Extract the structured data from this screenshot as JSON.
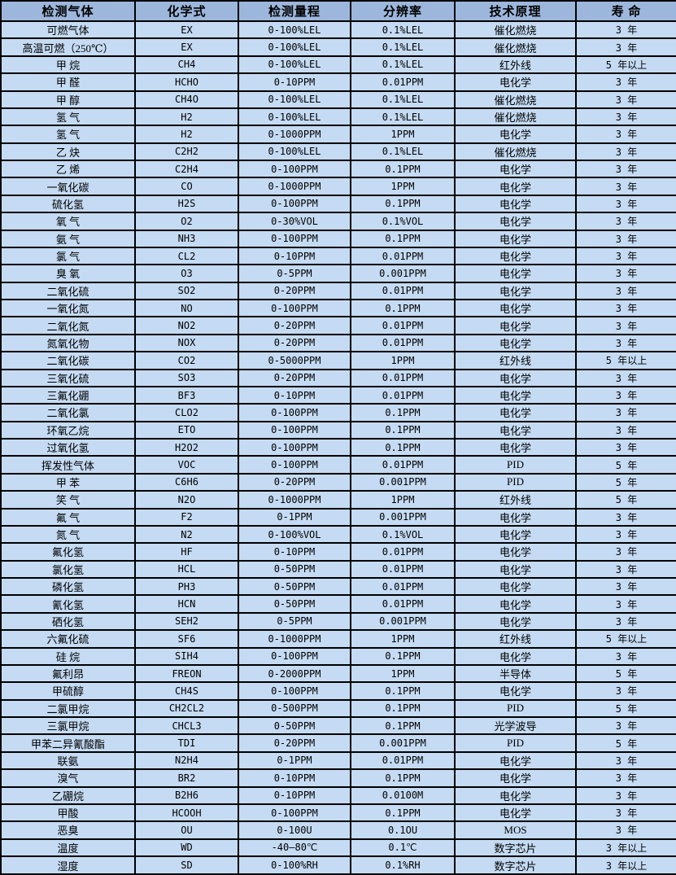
{
  "colors": {
    "header_bg": "#9DB7DC",
    "row_bg": "#C5DBF3",
    "border": "#000000"
  },
  "table": {
    "columns": [
      {
        "key": "gas",
        "label": "检测气体"
      },
      {
        "key": "formula",
        "label": "化学式"
      },
      {
        "key": "range",
        "label": "检测量程"
      },
      {
        "key": "resolution",
        "label": "分辨率"
      },
      {
        "key": "principle",
        "label": "技术原理"
      },
      {
        "key": "lifespan",
        "label": "寿 命"
      }
    ],
    "rows": [
      [
        "可燃气体",
        "EX",
        "0-100%LEL",
        "0.1%LEL",
        "催化燃烧",
        "3 年"
      ],
      [
        "高温可燃（250℃）",
        "EX",
        "0-100%LEL",
        "0.1%LEL",
        "催化燃烧",
        "3 年"
      ],
      [
        "甲 烷",
        "CH4",
        "0-100%LEL",
        "0.1%LEL",
        "红外线",
        "5 年以上"
      ],
      [
        "甲 醛",
        "HCHO",
        "0-10PPM",
        "0.01PPM",
        "电化学",
        "3 年"
      ],
      [
        "甲 醇",
        "CH4O",
        "0-100%LEL",
        "0.1%LEL",
        "催化燃烧",
        "3 年"
      ],
      [
        "氢 气",
        "H2",
        "0-100%LEL",
        "0.1%LEL",
        "催化燃烧",
        "3 年"
      ],
      [
        "氢 气",
        "H2",
        "0-1000PPM",
        "1PPM",
        "电化学",
        "3 年"
      ],
      [
        "乙 炔",
        "C2H2",
        "0-100%LEL",
        "0.1%LEL",
        "催化燃烧",
        "3 年"
      ],
      [
        "乙 烯",
        "C2H4",
        "0-100PPM",
        "0.1PPM",
        "电化学",
        "3 年"
      ],
      [
        "一氧化碳",
        "CO",
        "0-1000PPM",
        "1PPM",
        "电化学",
        "3 年"
      ],
      [
        "硫化氢",
        "H2S",
        "0-100PPM",
        "0.1PPM",
        "电化学",
        "3 年"
      ],
      [
        "氧 气",
        "O2",
        "0-30%VOL",
        "0.1%VOL",
        "电化学",
        "3 年"
      ],
      [
        "氨 气",
        "NH3",
        "0-100PPM",
        "0.1PPM",
        "电化学",
        "3 年"
      ],
      [
        "氯 气",
        "CL2",
        "0-10PPM",
        "0.01PPM",
        "电化学",
        "3 年"
      ],
      [
        "臭 氧",
        "O3",
        "0-5PPM",
        "0.001PPM",
        "电化学",
        "3 年"
      ],
      [
        "二氧化硫",
        "SO2",
        "0-20PPM",
        "0.01PPM",
        "电化学",
        "3 年"
      ],
      [
        "一氧化氮",
        "NO",
        "0-100PPM",
        "0.1PPM",
        "电化学",
        "3 年"
      ],
      [
        "二氧化氮",
        "NO2",
        "0-20PPM",
        "0.01PPM",
        "电化学",
        "3 年"
      ],
      [
        "氮氧化物",
        "NOX",
        "0-20PPM",
        "0.01PPM",
        "电化学",
        "3 年"
      ],
      [
        "二氧化碳",
        "CO2",
        "0-5000PPM",
        "1PPM",
        "红外线",
        "5 年以上"
      ],
      [
        "三氧化硫",
        "SO3",
        "0-20PPM",
        "0.01PPM",
        "电化学",
        "3 年"
      ],
      [
        "三氟化硼",
        "BF3",
        "0-10PPM",
        "0.01PPM",
        "电化学",
        "3 年"
      ],
      [
        "二氧化氯",
        "CLO2",
        "0-100PPM",
        "0.1PPM",
        "电化学",
        "3 年"
      ],
      [
        "环氧乙烷",
        "ETO",
        "0-100PPM",
        "0.1PPM",
        "电化学",
        "3 年"
      ],
      [
        "过氧化氢",
        "H2O2",
        "0-100PPM",
        "0.1PPM",
        "电化学",
        "3 年"
      ],
      [
        "挥发性气体",
        "VOC",
        "0-100PPM",
        "0.01PPM",
        "PID",
        "5 年"
      ],
      [
        "甲 苯",
        "C6H6",
        "0-20PPM",
        "0.001PPM",
        "PID",
        "5 年"
      ],
      [
        "笑 气",
        "N2O",
        "0-1000PPM",
        "1PPM",
        "红外线",
        "5 年"
      ],
      [
        "氟 气",
        "F2",
        "0-1PPM",
        "0.001PPM",
        "电化学",
        "3 年"
      ],
      [
        "氮 气",
        "N2",
        "0-100%VOL",
        "0.1%VOL",
        "电化学",
        "3 年"
      ],
      [
        "氟化氢",
        "HF",
        "0-10PPM",
        "0.01PPM",
        "电化学",
        "3 年"
      ],
      [
        "氯化氢",
        "HCL",
        "0-50PPM",
        "0.01PPM",
        "电化学",
        "3 年"
      ],
      [
        "磷化氢",
        "PH3",
        "0-50PPM",
        "0.01PPM",
        "电化学",
        "3 年"
      ],
      [
        "氰化氢",
        "HCN",
        "0-50PPM",
        "0.01PPM",
        "电化学",
        "3 年"
      ],
      [
        "硒化氢",
        "SEH2",
        "0-5PPM",
        "0.001PPM",
        "电化学",
        "3 年"
      ],
      [
        "六氟化硫",
        "SF6",
        "0-1000PPM",
        "1PPM",
        "红外线",
        "5 年以上"
      ],
      [
        "硅 烷",
        "SIH4",
        "0-100PPM",
        "0.1PPM",
        "电化学",
        "3 年"
      ],
      [
        "氟利昂",
        "FREON",
        "0-2000PPM",
        "1PPM",
        "半导体",
        "5 年"
      ],
      [
        "甲硫醇",
        "CH4S",
        "0-100PPM",
        "0.1PPM",
        "电化学",
        "3 年"
      ],
      [
        "二氯甲烷",
        "CH2CL2",
        "0-500PPM",
        "0.1PPM",
        "PID",
        "5 年"
      ],
      [
        "三氯甲烷",
        "CHCL3",
        "0-50PPM",
        "0.1PPM",
        "光学波导",
        "3 年"
      ],
      [
        "甲苯二异氰酸酯",
        "TDI",
        "0-20PPM",
        "0.001PPM",
        "PID",
        "5 年"
      ],
      [
        "联氨",
        "N2H4",
        "0-1PPM",
        "0.01PPM",
        "电化学",
        "3 年"
      ],
      [
        "溴气",
        "BR2",
        "0-10PPM",
        "0.1PPM",
        "电化学",
        "3 年"
      ],
      [
        "乙硼烷",
        "B2H6",
        "0-10PPM",
        "0.0100M",
        "电化学",
        "3 年"
      ],
      [
        "甲酸",
        "HCOOH",
        "0-100PPM",
        "0.1PPM",
        "电化学",
        "3 年"
      ],
      [
        "恶臭",
        "OU",
        "0-100U",
        "0.1OU",
        "MOS",
        "3 年"
      ],
      [
        "温度",
        "WD",
        "-40—80℃",
        "0.1℃",
        "数字芯片",
        "3 年以上"
      ],
      [
        "湿度",
        "SD",
        "0-100%RH",
        "0.1%RH",
        "数字芯片",
        "3 年以上"
      ]
    ]
  }
}
